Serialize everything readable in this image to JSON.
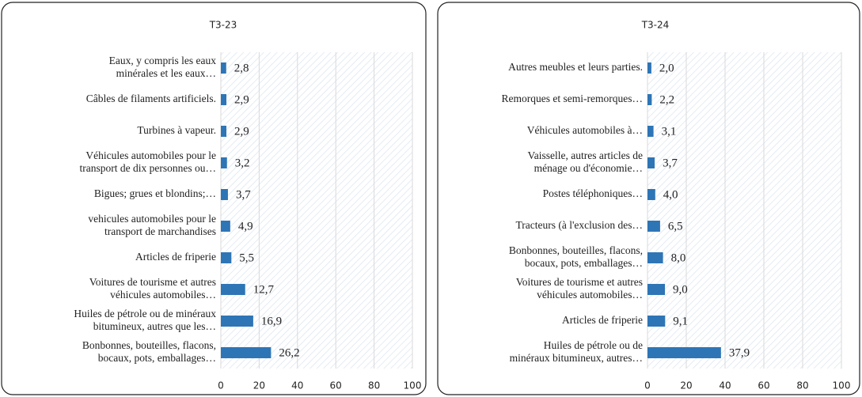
{
  "chart_data": [
    {
      "type": "bar",
      "orientation": "horizontal",
      "title": "T3-23",
      "color": "#2e75b6",
      "grid": true,
      "categories": [
        [
          "Eaux, y compris les eaux",
          "minérales et les eaux…"
        ],
        [
          "Câbles de filaments artificiels."
        ],
        [
          "Turbines à vapeur."
        ],
        [
          "Véhicules automobiles pour le",
          "transport de dix personnes ou…"
        ],
        [
          "Bigues; grues et blondins;…"
        ],
        [
          "vehicules automobiles pour le",
          "transport de marchandises"
        ],
        [
          "Articles de friperie"
        ],
        [
          "Voitures de tourisme et autres",
          "véhicules automobiles…"
        ],
        [
          "Huiles de pétrole ou de minéraux",
          "bitumineux, autres que les…"
        ],
        [
          "Bonbonnes, bouteilles, flacons,",
          "bocaux, pots, emballages…"
        ]
      ],
      "values": [
        2.8,
        2.9,
        2.9,
        3.2,
        3.7,
        4.9,
        5.5,
        12.7,
        16.9,
        26.2
      ],
      "value_labels": [
        "2,8",
        "2,9",
        "2,9",
        "3,2",
        "3,7",
        "4,9",
        "5,5",
        "12,7",
        "16,9",
        "26,2"
      ],
      "xlim": [
        0,
        100
      ],
      "xticks": [
        0,
        20,
        40,
        60,
        80,
        100
      ]
    },
    {
      "type": "bar",
      "orientation": "horizontal",
      "title": "T3-24",
      "color": "#2e75b6",
      "grid": true,
      "categories": [
        [
          "Autres meubles et leurs parties."
        ],
        [
          "Remorques et semi-remorques…"
        ],
        [
          "Véhicules  automobiles à…"
        ],
        [
          "Vaisselle, autres articles de",
          "ménage ou d'économie…"
        ],
        [
          "Postes téléphoniques…"
        ],
        [
          "Tracteurs (à l'exclusion  des…"
        ],
        [
          "Bonbonnes, bouteilles, flacons,",
          "bocaux, pots, emballages…"
        ],
        [
          "Voitures de tourisme et autres",
          "véhicules automobiles…"
        ],
        [
          "Articles de friperie"
        ],
        [
          "Huiles de pétrole ou de",
          "minéraux bitumineux, autres…"
        ]
      ],
      "values": [
        2.0,
        2.2,
        3.1,
        3.7,
        4.0,
        6.5,
        8.0,
        9.0,
        9.1,
        37.9
      ],
      "value_labels": [
        "2,0",
        "2,2",
        "3,1",
        "3,7",
        "4,0",
        "6,5",
        "8,0",
        "9,0",
        "9,1",
        "37,9"
      ],
      "xlim": [
        0,
        100
      ],
      "xticks": [
        0,
        20,
        40,
        60,
        80,
        100
      ]
    }
  ]
}
